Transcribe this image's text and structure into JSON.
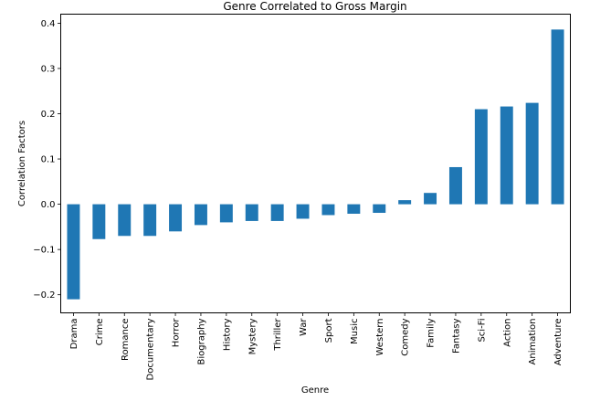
{
  "chart_data": {
    "type": "bar",
    "title": "Genre Correlated to Gross Margin",
    "xlabel": "Genre",
    "ylabel": "Correlation Factors",
    "ylim": [
      -0.24,
      0.42
    ],
    "yticks": [
      -0.2,
      -0.1,
      0.0,
      0.1,
      0.2,
      0.3,
      0.4
    ],
    "ytick_labels": [
      "−0.2",
      "−0.1",
      "0.0",
      "0.1",
      "0.2",
      "0.3",
      "0.4"
    ],
    "grid": false,
    "bar_color": "#1f77b4",
    "categories": [
      "Drama",
      "Crime",
      "Romance",
      "Documentary",
      "Horror",
      "Biography",
      "History",
      "Mystery",
      "Thriller",
      "War",
      "Sport",
      "Music",
      "Western",
      "Comedy",
      "Family",
      "Fantasy",
      "Sci-Fi",
      "Action",
      "Animation",
      "Adventure"
    ],
    "values": [
      -0.21,
      -0.077,
      -0.07,
      -0.07,
      -0.06,
      -0.046,
      -0.04,
      -0.037,
      -0.037,
      -0.032,
      -0.024,
      -0.021,
      -0.019,
      0.009,
      0.025,
      0.082,
      0.21,
      0.216,
      0.224,
      0.386
    ]
  }
}
